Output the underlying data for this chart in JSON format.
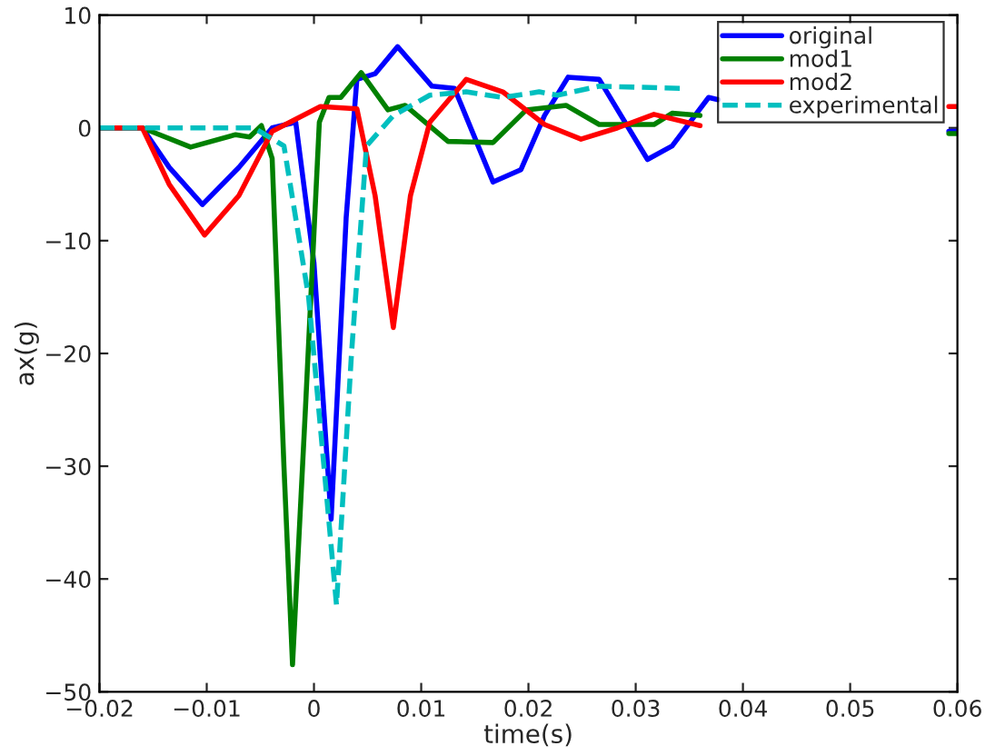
{
  "chart_data": {
    "type": "line",
    "xlabel": "time(s)",
    "ylabel": "ax(g)",
    "xlim": [
      -0.02,
      0.06
    ],
    "ylim": [
      -50,
      10
    ],
    "xticks": [
      {
        "value": -0.02,
        "label": "−0.02"
      },
      {
        "value": -0.01,
        "label": "−0.01"
      },
      0,
      0.01,
      0.02,
      0.03,
      0.04,
      0.05,
      0.06
    ],
    "yticks": [
      {
        "value": -50,
        "label": "−50"
      },
      {
        "value": -40,
        "label": "−40"
      },
      {
        "value": -30,
        "label": "−30"
      },
      {
        "value": -20,
        "label": "−20"
      },
      {
        "value": -10,
        "label": "−10"
      },
      0,
      10
    ],
    "grid": false,
    "legend": "top right",
    "marker": "none",
    "series": [
      {
        "name": "original",
        "color": "#0000ff",
        "line_style": "solid",
        "x": [
          -0.02,
          -0.016,
          -0.0135,
          -0.0104,
          -0.007,
          -0.0039,
          -0.0017,
          0.0,
          0.0016,
          0.003,
          0.004,
          0.0057,
          0.0078,
          0.011,
          0.0131,
          0.0167,
          0.0193,
          0.0215,
          0.0237,
          0.0266,
          0.0311,
          0.0334,
          0.0368,
          0.0377,
          0.05,
          0.0592,
          0.06
        ],
        "values": [
          0,
          0,
          -3.5,
          -6.8,
          -3.5,
          0,
          0.5,
          -12,
          -34.7,
          -8,
          4.3,
          4.8,
          7.2,
          3.7,
          3.5,
          -4.8,
          -3.7,
          1.1,
          4.5,
          4.3,
          -2.8,
          -1.6,
          2.7,
          2.5,
          null,
          -0.3,
          -0.3
        ]
      },
      {
        "name": "mod1",
        "color": "#008000",
        "line_style": "solid",
        "x": [
          -0.02,
          -0.016,
          -0.0115,
          -0.0073,
          -0.006,
          -0.0049,
          -0.0039,
          -0.0028,
          -0.002,
          -0.0008,
          0.0005,
          0.0014,
          0.0025,
          0.0044,
          0.0069,
          0.0085,
          0.0125,
          0.0167,
          0.0198,
          0.0235,
          0.0266,
          0.0317,
          0.0334,
          0.036,
          0.05,
          0.0592,
          0.06
        ],
        "values": [
          0,
          0,
          -1.7,
          -0.6,
          -0.8,
          0.2,
          -2.7,
          -30,
          -47.6,
          -25,
          0.5,
          2.7,
          2.7,
          4.9,
          1.6,
          2.0,
          -1.2,
          -1.3,
          1.6,
          2.0,
          0.3,
          0.3,
          1.3,
          1.1,
          null,
          -0.5,
          -0.5
        ]
      },
      {
        "name": "mod2",
        "color": "#ff0000",
        "line_style": "solid",
        "x": [
          -0.02,
          -0.016,
          -0.0135,
          -0.0102,
          -0.007,
          -0.0039,
          0.0006,
          0.004,
          0.0057,
          0.0074,
          0.009,
          0.0108,
          0.0142,
          0.0176,
          0.0215,
          0.0249,
          0.0283,
          0.0317,
          0.036,
          0.05,
          0.0592,
          0.06
        ],
        "values": [
          0,
          0,
          -5,
          -9.5,
          -6,
          -0.3,
          1.9,
          1.7,
          -6,
          -17.7,
          -6,
          0.5,
          4.3,
          3.2,
          0.3,
          -1.0,
          0,
          1.2,
          0.2,
          null,
          1.9,
          1.9
        ]
      },
      {
        "name": "experimental",
        "color": "#00bfbf",
        "line_style": "dashed",
        "x": [
          -0.02,
          -0.0056,
          -0.0028,
          -0.0005,
          0.0021,
          0.0035,
          0.0049,
          0.0074,
          0.0108,
          0.0142,
          0.0176,
          0.021,
          0.0227,
          0.0266,
          0.0345
        ],
        "values": [
          0,
          0,
          -1.6,
          -15,
          -42.3,
          -20,
          -1.6,
          1.1,
          2.9,
          3.2,
          2.7,
          3.2,
          2.9,
          3.7,
          3.5
        ]
      }
    ]
  }
}
